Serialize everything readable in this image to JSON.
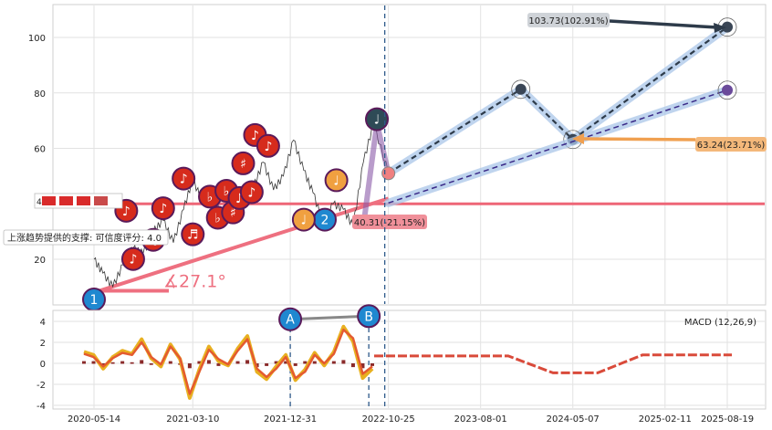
{
  "chart_data": [
    {
      "type": "line",
      "title": "",
      "xlabel": "",
      "ylabel": "",
      "grid": true,
      "x_ticks": [
        "2020-05-14",
        "2021-03-10",
        "2021-12-31",
        "2022-10-25",
        "2023-08-01",
        "2024-05-07",
        "2025-02-11",
        "2025-08-19"
      ],
      "y_ticks": [
        "20",
        "40",
        "60",
        "80",
        "100"
      ],
      "ylim": [
        2,
        111
      ],
      "price_series": {
        "name": "",
        "dates": [
          "2020-05-14",
          "2020-06-10",
          "2020-07-10",
          "2020-08-10",
          "2020-09-10",
          "2020-10-10",
          "2020-11-10",
          "2020-12-10",
          "2021-01-10",
          "2021-02-10",
          "2021-03-10",
          "2021-04-10",
          "2021-05-10",
          "2021-06-10",
          "2021-07-10",
          "2021-08-10",
          "2021-09-10",
          "2021-10-10",
          "2021-11-10",
          "2021-12-10",
          "2022-01-10",
          "2022-02-10",
          "2022-03-10",
          "2022-04-10",
          "2022-05-10",
          "2022-06-10",
          "2022-07-10",
          "2022-08-10",
          "2022-09-10",
          "2022-10-25"
        ],
        "values": [
          20,
          15,
          10,
          18,
          24,
          22,
          30,
          34,
          26,
          38,
          49,
          40,
          44,
          33,
          47,
          40,
          46,
          55,
          45,
          50,
          63,
          52,
          44,
          33,
          40,
          38,
          32,
          55,
          69,
          51
        ]
      },
      "support_line": {
        "label": "上涨趋势提供的支撑: 可信度评分: 4.0",
        "level": 40
      },
      "trend_line": {
        "start": [
          "2020-05-14",
          8
        ],
        "end": [
          "2025-08-19",
          81
        ]
      },
      "angle_label": "∡27.1°",
      "markers": [
        {
          "date": "2020-05-14",
          "value": 5.5,
          "symbol": "1",
          "color": "#1f88d0"
        },
        {
          "date": "2022-04-15",
          "value": 34.3,
          "symbol": "2",
          "color": "#1f88d0"
        },
        {
          "date": "2022-09-20",
          "value": 70.5,
          "symbol": "♩",
          "color": "#2e4a56"
        },
        {
          "date": "2022-02-10",
          "value": 34.3,
          "symbol": "♩",
          "color": "#f0a040"
        },
        {
          "date": "2022-05-20",
          "value": 48.5,
          "symbol": "♩",
          "color": "#f0a040"
        },
        {
          "date": "2020-08-20",
          "value": 37.5,
          "symbol": "♪",
          "color": "#d62b1c"
        },
        {
          "date": "2020-09-10",
          "value": 20.1,
          "symbol": "♪",
          "color": "#d62b1c"
        },
        {
          "date": "2020-11-10",
          "value": 27.0,
          "symbol": "♫",
          "color": "#d62b1c"
        },
        {
          "date": "2020-12-10",
          "value": 38.4,
          "symbol": "♪",
          "color": "#d62b1c"
        },
        {
          "date": "2021-02-10",
          "value": 49.1,
          "symbol": "♪",
          "color": "#d62b1c"
        },
        {
          "date": "2021-03-10",
          "value": 29.0,
          "symbol": "♬",
          "color": "#d62b1c"
        },
        {
          "date": "2021-05-01",
          "value": 42.6,
          "symbol": "♭",
          "color": "#d62b1c"
        },
        {
          "date": "2021-05-25",
          "value": 35.0,
          "symbol": "♭",
          "color": "#d62b1c"
        },
        {
          "date": "2021-06-20",
          "value": 44.7,
          "symbol": "♭",
          "color": "#d62b1c"
        },
        {
          "date": "2021-07-10",
          "value": 36.9,
          "symbol": "♯",
          "color": "#d62b1c"
        },
        {
          "date": "2021-07-30",
          "value": 42.1,
          "symbol": "♪",
          "color": "#d62b1c"
        },
        {
          "date": "2021-08-10",
          "value": 54.6,
          "symbol": "♯",
          "color": "#d62b1c"
        },
        {
          "date": "2021-09-05",
          "value": 44.2,
          "symbol": "♪",
          "color": "#d62b1c"
        },
        {
          "date": "2021-09-15",
          "value": 64.8,
          "symbol": "♪",
          "color": "#d62b1c"
        },
        {
          "date": "2021-10-25",
          "value": 60.9,
          "symbol": "♪",
          "color": "#d62b1c"
        }
      ],
      "forecast_paths": [
        {
          "name": "",
          "color": "#2e3b4a",
          "points": [
            [
              "2022-10-25",
              51.0
            ],
            [
              "2023-12-01",
              81.3
            ],
            [
              "2024-05-07",
              63.2
            ],
            [
              "2025-08-19",
              103.73
            ]
          ]
        },
        {
          "name": "",
          "color": "#3a2a88",
          "points": [
            [
              "2022-10-25",
              40.3
            ],
            [
              "2025-08-19",
              81.0
            ]
          ]
        }
      ],
      "price_labels": [
        {
          "text": "103.73(102.91%)",
          "color": "#cfd3d8",
          "anchor": [
            "2025-08-19",
            103.73
          ]
        },
        {
          "text": "63.24(23.71%)",
          "color": "#f4b87a",
          "anchor": [
            "2024-05-07",
            63.24
          ]
        },
        {
          "text": "40.31(-21.15%)",
          "color": "#f0909a",
          "anchor": [
            "2022-10-25",
            40.31
          ]
        }
      ],
      "legend_rows": [
        "4"
      ]
    },
    {
      "type": "line",
      "title": "",
      "legend": "MACD (12,26,9)",
      "y_ticks": [
        "4",
        "2",
        "0",
        "-2",
        "-4"
      ],
      "ylim": [
        -4.3,
        4.8
      ],
      "x_ticks": [
        "2020-05-14",
        "2021-03-10",
        "2021-12-31",
        "2022-10-25",
        "2023-08-01",
        "2024-05-07",
        "2025-02-11",
        "2025-08-19"
      ],
      "series": [
        {
          "name": "",
          "values": [
            1.1,
            0.8,
            -0.5,
            0.6,
            1.2,
            0.9,
            2.3,
            0.5,
            -0.3,
            1.8,
            0.4,
            -3.3,
            -0.6,
            1.6,
            0.2,
            -0.2,
            1.4,
            2.6,
            -0.8,
            -1.5,
            -0.3,
            0.8,
            -1.6,
            -0.6,
            1.0,
            -0.2,
            1.1,
            3.5,
            2.1,
            -1.4,
            -0.5
          ]
        },
        {
          "name": "",
          "values": [
            0.9,
            0.6,
            -0.3,
            0.5,
            1.0,
            0.8,
            2.0,
            0.6,
            -0.1,
            1.6,
            0.5,
            -2.9,
            -0.8,
            1.3,
            0.4,
            -0.1,
            1.2,
            2.3,
            -0.5,
            -1.3,
            -0.5,
            0.6,
            -1.4,
            -0.8,
            0.8,
            0.0,
            0.9,
            3.2,
            2.4,
            -1.0,
            -0.3
          ]
        }
      ],
      "forecast": [
        0.7,
        0.7,
        0.7,
        0.7,
        -0.9,
        -0.9,
        0.8,
        0.8,
        0.8
      ],
      "markers": [
        {
          "label": "A",
          "date": "2021-12-31",
          "value": 4.2
        },
        {
          "label": "B",
          "date": "2022-09-01",
          "value": 4.5
        }
      ]
    }
  ]
}
